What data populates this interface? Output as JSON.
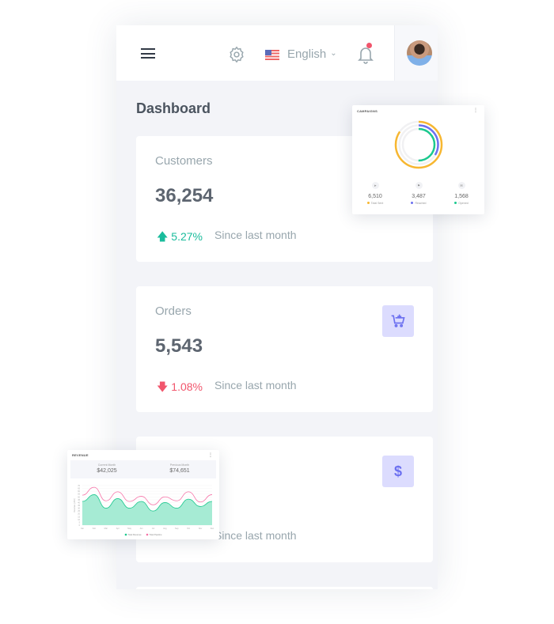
{
  "header": {
    "language": "English",
    "icons": [
      "menu-icon",
      "gear-icon",
      "us-flag-icon",
      "chevron-down-icon",
      "bell-icon",
      "avatar"
    ],
    "notification_color": "#f1556c"
  },
  "page": {
    "title": "Dashboard"
  },
  "cards": [
    {
      "label": "Customers",
      "value": "36,254",
      "change": "5.27%",
      "direction": "up",
      "since": "Since last month",
      "color": "#1abc9c"
    },
    {
      "label": "Orders",
      "value": "5,543",
      "change": "1.08%",
      "direction": "down",
      "since": "Since last month",
      "color": "#f1556c",
      "icon": "cart-plus-icon"
    },
    {
      "since": "Since last month",
      "icon": "dollar-icon",
      "icon_text": "$"
    }
  ],
  "campaigns": {
    "title": "CAMPAIGNS",
    "stats": [
      {
        "value": "6,510",
        "label": "Total Sent",
        "color": "#f7b731",
        "icon": "send-icon"
      },
      {
        "value": "3,487",
        "label": "Reached",
        "color": "#6c70f0",
        "icon": "flag-icon"
      },
      {
        "value": "1,568",
        "label": "Opened",
        "color": "#1bc98e",
        "icon": "mail-open-icon"
      }
    ]
  },
  "revenue": {
    "title": "REVENUE",
    "current_label": "Current Month",
    "current": "$42,025",
    "previous_label": "Previous Month",
    "previous": "$74,651"
  },
  "chart_data": {
    "type": "area",
    "ylabel": "Revenue (USD)",
    "ylim": [
      0,
      70
    ],
    "yticks": [
      0,
      5,
      10,
      15,
      20,
      25,
      30,
      35,
      40,
      45,
      50,
      55,
      60,
      65,
      70
    ],
    "categories": [
      "Jan",
      "Feb",
      "Mar",
      "Apr",
      "May",
      "Jun",
      "Jul",
      "Aug",
      "Sep",
      "Oct",
      "Nov",
      "Dec"
    ],
    "series": [
      {
        "name": "Total Revenue",
        "color": "#1bc98e",
        "values": [
          42,
          54,
          30,
          47,
          30,
          42,
          25,
          40,
          30,
          46,
          33,
          42
        ]
      },
      {
        "name": "Total Pipeline",
        "color": "#f672a7",
        "values": [
          53,
          67,
          43,
          59,
          42,
          51,
          36,
          50,
          43,
          59,
          41,
          54
        ]
      }
    ],
    "legend": "bottom"
  }
}
